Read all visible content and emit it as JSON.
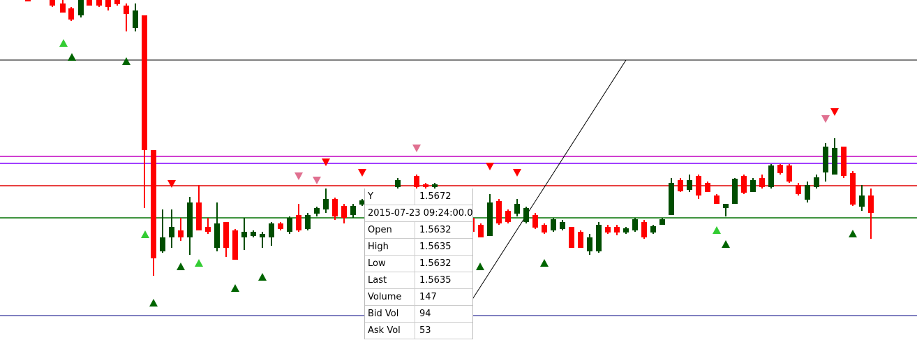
{
  "tooltip": {
    "rows": [
      {
        "label": "Y",
        "value": "1.5672"
      },
      {
        "label": "2015-07-23  09:24:00.0"
      },
      {
        "label": "Open",
        "value": "1.5632"
      },
      {
        "label": "High",
        "value": "1.5635"
      },
      {
        "label": "Low",
        "value": "1.5632"
      },
      {
        "label": "Last",
        "value": "1.5635"
      },
      {
        "label": "Volume",
        "value": "147"
      },
      {
        "label": "Bid Vol",
        "value": "94"
      },
      {
        "label": "Ask Vol",
        "value": "53"
      }
    ]
  }
}
